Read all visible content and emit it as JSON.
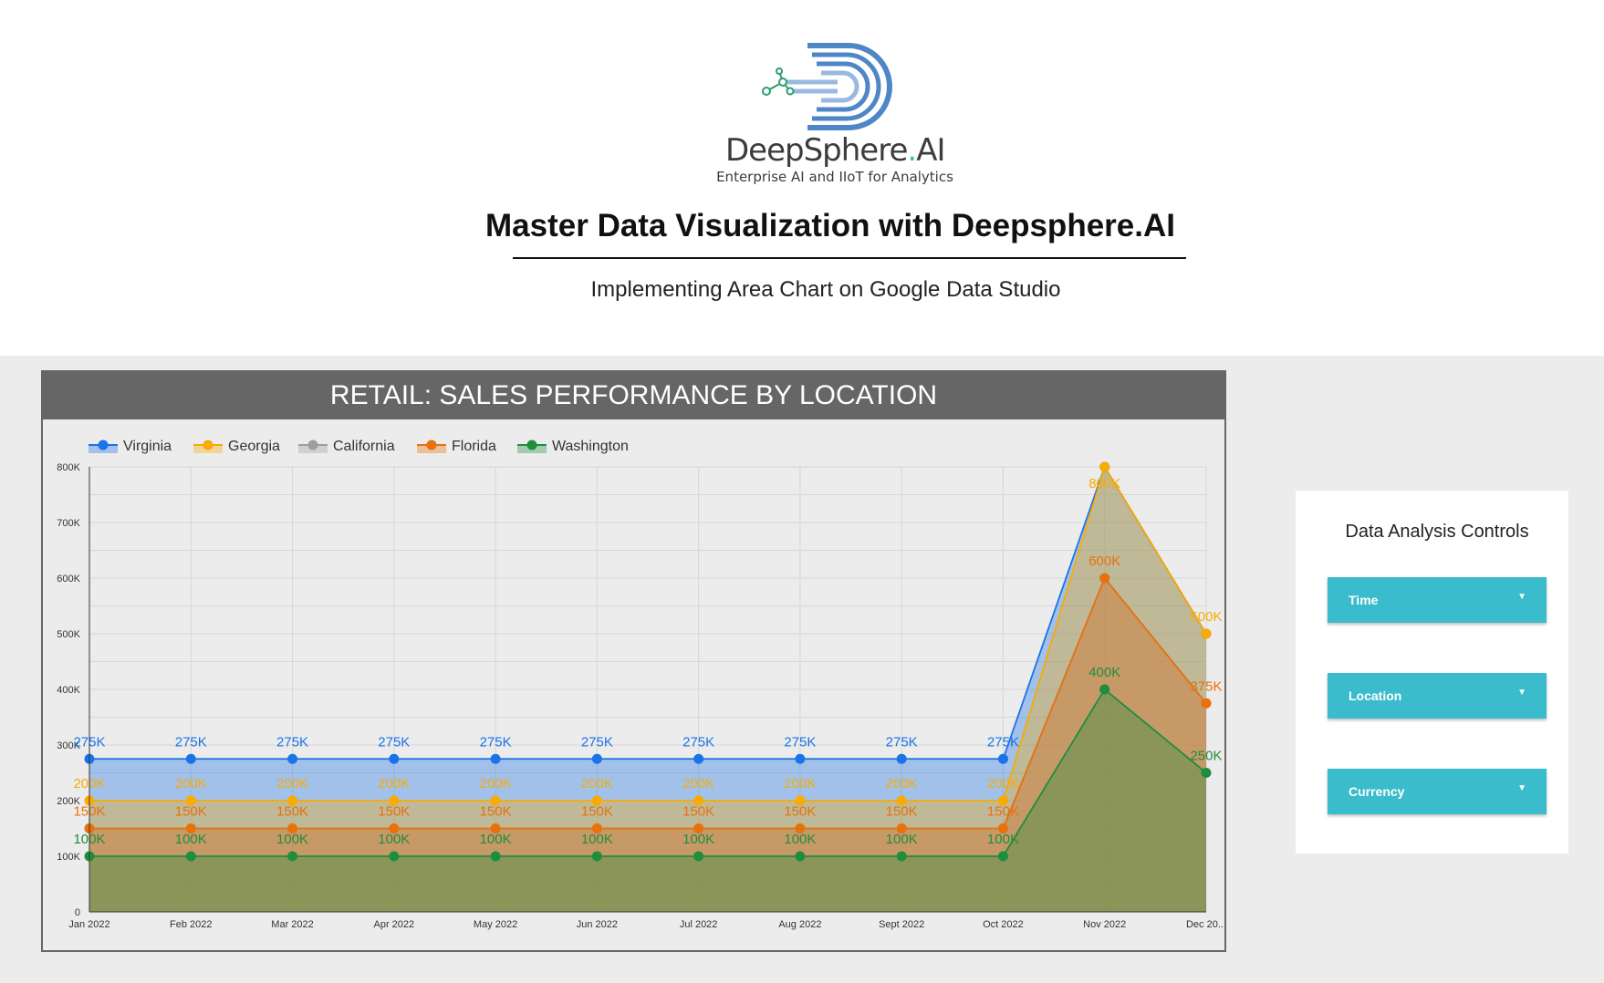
{
  "logo": {
    "name": "DeepSphere",
    "accent": ".",
    "suffix": "AI",
    "tagline": "Enterprise AI and IIoT for Analytics"
  },
  "header": {
    "title": "Master Data Visualization with Deepsphere.AI",
    "subtitle": "Implementing Area Chart on Google Data Studio"
  },
  "chart_title": "RETAIL: SALES PERFORMANCE BY LOCATION",
  "controls": {
    "title": "Data Analysis Controls",
    "items": [
      "Time",
      "Location",
      "Currency"
    ]
  },
  "colors": {
    "Virginia": "#1a73e8",
    "Georgia": "#f9ab00",
    "California": "#9e9e9e",
    "Florida": "#e8710a",
    "Washington": "#1e8e3e",
    "header_bar": "#666666",
    "control_button": "#3bbccc"
  },
  "chart_data": {
    "type": "area",
    "categories": [
      "Jan 2022",
      "Feb 2022",
      "Mar 2022",
      "Apr 2022",
      "May 2022",
      "Jun 2022",
      "Jul 2022",
      "Aug 2022",
      "Sept 2022",
      "Oct 2022",
      "Nov 2022",
      "Dec 20..."
    ],
    "ylim": [
      0,
      800000
    ],
    "yticks": [
      0,
      100000,
      200000,
      300000,
      400000,
      500000,
      600000,
      700000,
      800000
    ],
    "ytick_labels": [
      "0",
      "100K",
      "200K",
      "300K",
      "400K",
      "500K",
      "600K",
      "700K",
      "800K"
    ],
    "grid": true,
    "legend": "top-left",
    "series": [
      {
        "name": "Virginia",
        "values": [
          275000,
          275000,
          275000,
          275000,
          275000,
          275000,
          275000,
          275000,
          275000,
          275000,
          800000,
          500000
        ],
        "labels": [
          "275K",
          "275K",
          "275K",
          "275K",
          "275K",
          "275K",
          "275K",
          "275K",
          "275K",
          "275K",
          "",
          ""
        ]
      },
      {
        "name": "Georgia",
        "values": [
          200000,
          200000,
          200000,
          200000,
          200000,
          200000,
          200000,
          200000,
          200000,
          200000,
          800000,
          500000
        ],
        "labels": [
          "200K",
          "200K",
          "200K",
          "200K",
          "200K",
          "200K",
          "200K",
          "200K",
          "200K",
          "200K",
          "800K",
          "500K"
        ]
      },
      {
        "name": "California",
        "values": [
          150000,
          150000,
          150000,
          150000,
          150000,
          150000,
          150000,
          150000,
          150000,
          150000,
          600000,
          375000
        ],
        "labels": [
          "",
          "",
          "",
          "",
          "",
          "",
          "",
          "",
          "",
          "",
          "",
          ""
        ]
      },
      {
        "name": "Florida",
        "values": [
          150000,
          150000,
          150000,
          150000,
          150000,
          150000,
          150000,
          150000,
          150000,
          150000,
          600000,
          375000
        ],
        "labels": [
          "150K",
          "150K",
          "150K",
          "150K",
          "150K",
          "150K",
          "150K",
          "150K",
          "150K",
          "150K",
          "600K",
          "375K"
        ]
      },
      {
        "name": "Washington",
        "values": [
          100000,
          100000,
          100000,
          100000,
          100000,
          100000,
          100000,
          100000,
          100000,
          100000,
          400000,
          250000
        ],
        "labels": [
          "100K",
          "100K",
          "100K",
          "100K",
          "100K",
          "100K",
          "100K",
          "100K",
          "100K",
          "100K",
          "400K",
          "250K"
        ]
      }
    ]
  }
}
